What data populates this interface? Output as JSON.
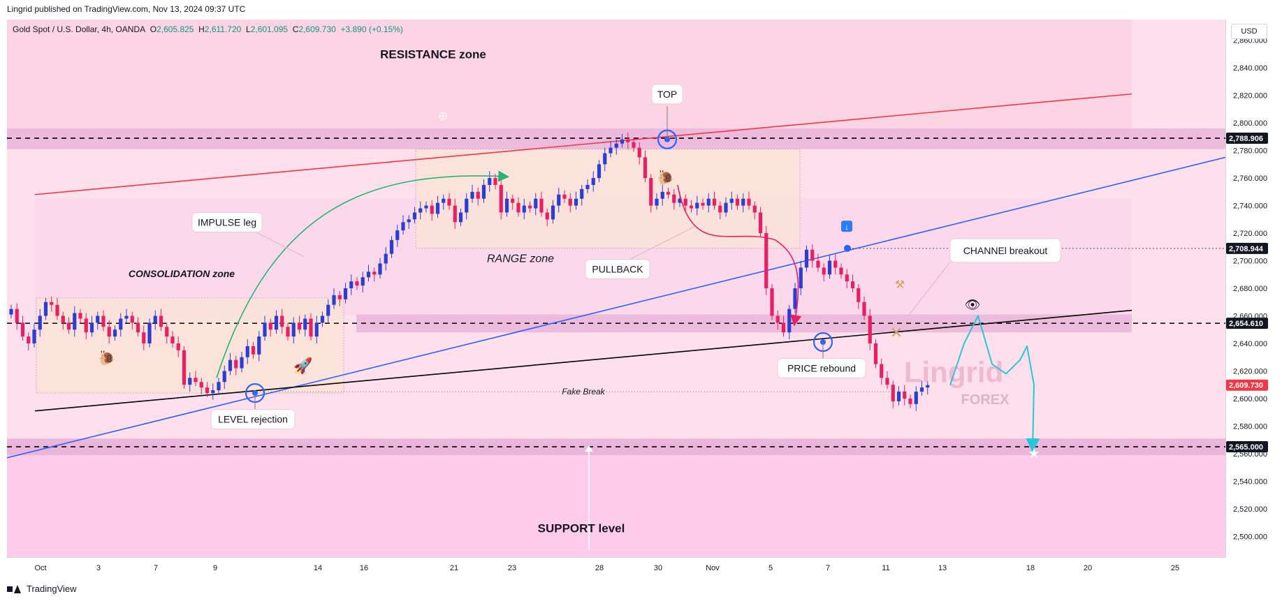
{
  "header": {
    "published": "Lingrid published on TradingView.com, Nov 13, 2024 09:37 UTC"
  },
  "legend": {
    "symbol": "Gold Spot / U.S. Dollar, 4h, OANDA",
    "open_label": "O",
    "open": "2,605.825",
    "high_label": "H",
    "high": "2,611.720",
    "low_label": "L",
    "low": "2,601.095",
    "close_label": "C",
    "close": "2,609.730",
    "change": "+3.890 (+0.15%)"
  },
  "currency": "USD",
  "footer": {
    "brand": "TradingView"
  },
  "watermark": {
    "line1": "Lingrid",
    "line2": "FOREX"
  },
  "colors": {
    "chart_bg": "#fde0ec",
    "zone_band": "#e8b3d8",
    "range_box": "#fbe3d9",
    "bull": "#2a3fd1",
    "bear": "#e91e63",
    "resistance_line": "#f23645",
    "channel_line": "#2962ff",
    "trend_line": "#000000",
    "projection": "#26c6da",
    "arrow_green": "#22b573",
    "arrow_pink": "#e91e63"
  },
  "annotations": {
    "resistance_zone": "RESISTANCE zone",
    "support_level": "SUPPORT level",
    "consolidation_zone": "CONSOLIDATION zone",
    "range_zone": "RANGE zone",
    "impulse_leg": "IMPULSE leg",
    "level_rejection": "LEVEL rejection",
    "top": "TOP",
    "pullback": "PULLBACK",
    "price_rebound": "PRICE rebound",
    "channel_breakout": "CHANNEl breakout",
    "fake_break": "Fake Break"
  },
  "chart_data": {
    "type": "candlestick",
    "symbol": "XAUUSD",
    "timeframe": "4h",
    "ylim": [
      2485,
      2875
    ],
    "y_ticks": [
      2500,
      2520,
      2540,
      2560,
      2580,
      2600,
      2620,
      2640,
      2660,
      2680,
      2700,
      2720,
      2740,
      2760,
      2780,
      2800,
      2820,
      2840,
      2860
    ],
    "y_tick_labels": [
      "2,500.000",
      "2,520.000",
      "2,540.000",
      "2,560.000",
      "2,580.000",
      "2,600.000",
      "2,620.000",
      "2,640.000",
      "2,660.000",
      "2,680.000",
      "2,700.000",
      "2,720.000",
      "2,740.000",
      "2,760.000",
      "2,780.000",
      "2,800.000",
      "2,820.000",
      "2,840.000",
      "2,860.000"
    ],
    "x_ticks": [
      "Oct",
      "3",
      "7",
      "9",
      "14",
      "16",
      "21",
      "23",
      "28",
      "30",
      "Nov",
      "5",
      "7",
      "11",
      "13",
      "18",
      "20",
      "25"
    ],
    "price_labels": [
      {
        "value": 2788.906,
        "label": "2,788.906",
        "style": "dark"
      },
      {
        "value": 2708.944,
        "label": "2,708.944",
        "style": "dark"
      },
      {
        "value": 2654.61,
        "label": "2,654.610",
        "style": "dark"
      },
      {
        "value": 2609.73,
        "label": "2,609.730",
        "style": "red"
      },
      {
        "value": 2565.0,
        "label": "2,565.000",
        "style": "dark"
      }
    ],
    "key_levels": [
      2788.906,
      2654.61,
      2565.0
    ],
    "closes": [
      2665,
      2655,
      2645,
      2640,
      2650,
      2660,
      2670,
      2668,
      2660,
      2655,
      2650,
      2662,
      2658,
      2648,
      2655,
      2660,
      2652,
      2645,
      2650,
      2658,
      2660,
      2655,
      2648,
      2640,
      2655,
      2660,
      2652,
      2645,
      2640,
      2635,
      2610,
      2615,
      2612,
      2608,
      2604,
      2606,
      2612,
      2620,
      2628,
      2622,
      2630,
      2638,
      2632,
      2645,
      2655,
      2650,
      2660,
      2652,
      2645,
      2655,
      2650,
      2658,
      2645,
      2655,
      2660,
      2668,
      2675,
      2672,
      2680,
      2685,
      2682,
      2688,
      2692,
      2690,
      2698,
      2705,
      2715,
      2722,
      2728,
      2730,
      2735,
      2738,
      2740,
      2734,
      2742,
      2745,
      2740,
      2728,
      2735,
      2745,
      2750,
      2745,
      2755,
      2760,
      2755,
      2735,
      2745,
      2742,
      2735,
      2740,
      2738,
      2745,
      2735,
      2730,
      2740,
      2748,
      2745,
      2740,
      2745,
      2752,
      2755,
      2760,
      2770,
      2778,
      2782,
      2785,
      2788,
      2786,
      2782,
      2775,
      2760,
      2740,
      2745,
      2750,
      2748,
      2742,
      2745,
      2740,
      2738,
      2742,
      2740,
      2745,
      2740,
      2735,
      2742,
      2745,
      2740,
      2745,
      2740,
      2735,
      2720,
      2680,
      2660,
      2655,
      2648,
      2665,
      2680,
      2695,
      2708,
      2700,
      2695,
      2690,
      2700,
      2695,
      2690,
      2685,
      2680,
      2670,
      2660,
      2640,
      2625,
      2615,
      2610,
      2598,
      2605,
      2600,
      2596,
      2605,
      2608,
      2609.73
    ],
    "projection_path": [
      2609.73,
      2640,
      2660,
      2625,
      2618,
      2628,
      2638,
      2610,
      2563
    ]
  }
}
